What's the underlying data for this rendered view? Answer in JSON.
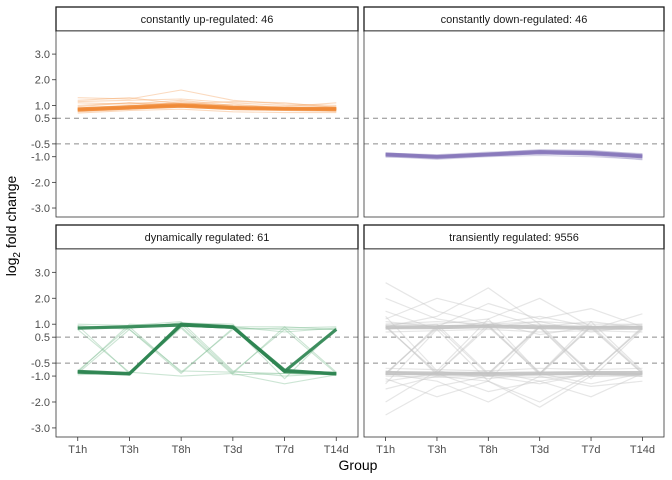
{
  "chart_data": {
    "type": "line",
    "facets": "2x2",
    "xlabel": "Group",
    "ylabel_main": "log",
    "ylabel_sub": "2",
    "ylabel_rest": " fold change",
    "categories": [
      "T1h",
      "T3h",
      "T8h",
      "T3d",
      "T7d",
      "T14d"
    ],
    "y_ticks": [
      {
        "label": "3.0",
        "value": 3.0
      },
      {
        "label": "2.0",
        "value": 2.0
      },
      {
        "label": "1.0",
        "value": 1.0
      },
      {
        "label": "0.5",
        "value": 0.5
      },
      {
        "label": "-0.5",
        "value": -0.5
      },
      {
        "label": "-1.0",
        "value": -1.0
      },
      {
        "label": "-2.0",
        "value": -2.0
      },
      {
        "label": "-3.0",
        "value": -3.0
      }
    ],
    "ylim": [
      -3.35,
      3.9
    ],
    "reference_lines": [
      0.5,
      -0.5
    ],
    "panels": [
      {
        "title": "constantly up-regulated: 46",
        "color": "#f4a360",
        "main_color": "#f08a36",
        "series": [
          {
            "values": [
              0.85,
              0.93,
              1.02,
              0.92,
              0.87,
              0.87
            ]
          },
          {
            "values": [
              0.82,
              0.88,
              0.95,
              0.88,
              0.84,
              0.83
            ]
          },
          {
            "values": [
              0.9,
              1.0,
              1.1,
              0.98,
              0.92,
              0.9
            ]
          },
          {
            "values": [
              1.15,
              1.2,
              1.25,
              1.1,
              1.0,
              0.95
            ]
          },
          {
            "values": [
              0.7,
              0.8,
              0.85,
              0.75,
              0.72,
              0.72
            ]
          },
          {
            "values": [
              1.3,
              1.25,
              1.6,
              1.2,
              1.05,
              1.0
            ]
          },
          {
            "values": [
              0.95,
              1.1,
              1.05,
              0.9,
              0.85,
              0.85
            ]
          },
          {
            "values": [
              1.0,
              1.1,
              0.95,
              1.05,
              0.9,
              0.9
            ]
          },
          {
            "values": [
              0.75,
              0.85,
              1.0,
              0.85,
              0.8,
              0.76
            ]
          },
          {
            "values": [
              1.1,
              1.05,
              1.2,
              1.0,
              0.95,
              1.1
            ]
          },
          {
            "values": [
              0.78,
              0.9,
              1.15,
              0.95,
              0.88,
              0.78
            ]
          },
          {
            "values": [
              1.2,
              1.3,
              1.05,
              1.15,
              1.1,
              0.92
            ]
          }
        ],
        "main_series": [
          {
            "values": [
              0.82,
              0.9,
              0.97,
              0.88,
              0.85,
              0.84
            ]
          },
          {
            "values": [
              0.86,
              0.94,
              1.02,
              0.92,
              0.88,
              0.88
            ]
          }
        ]
      },
      {
        "title": "constantly down-regulated: 46",
        "color": "#a198c8",
        "main_color": "#8879bb",
        "series": [
          {
            "values": [
              -0.92,
              -1.0,
              -0.9,
              -0.82,
              -0.85,
              -0.98
            ]
          },
          {
            "values": [
              -0.95,
              -1.05,
              -0.95,
              -0.86,
              -0.9,
              -1.02
            ]
          },
          {
            "values": [
              -0.9,
              -0.98,
              -0.88,
              -0.8,
              -0.83,
              -0.95
            ]
          },
          {
            "values": [
              -0.85,
              -0.95,
              -0.85,
              -0.72,
              -0.75,
              -0.9
            ]
          },
          {
            "values": [
              -1.0,
              -1.1,
              -1.0,
              -0.95,
              -1.0,
              -1.1
            ]
          },
          {
            "values": [
              -0.88,
              -1.02,
              -0.9,
              -0.78,
              -0.88,
              -1.05
            ]
          },
          {
            "values": [
              -0.94,
              -0.96,
              -0.86,
              -0.84,
              -0.8,
              -0.92
            ]
          },
          {
            "values": [
              -0.98,
              -1.08,
              -0.96,
              -0.9,
              -0.92,
              -1.08
            ]
          },
          {
            "values": [
              -0.86,
              -0.92,
              -0.82,
              -0.75,
              -0.78,
              -0.88
            ]
          },
          {
            "values": [
              -1.02,
              -1.0,
              -0.92,
              -0.88,
              -0.95,
              -1.12
            ]
          }
        ],
        "main_series": [
          {
            "values": [
              -0.9,
              -0.99,
              -0.9,
              -0.8,
              -0.84,
              -0.97
            ]
          },
          {
            "values": [
              -0.93,
              -1.02,
              -0.93,
              -0.84,
              -0.88,
              -1.0
            ]
          }
        ]
      },
      {
        "title": "dynamically regulated: 61",
        "color": "#7fbf93",
        "main_color": "#2f8552",
        "series": [
          {
            "values": [
              0.85,
              0.95,
              1.0,
              0.9,
              0.7,
              0.85
            ]
          },
          {
            "values": [
              0.9,
              0.85,
              1.05,
              0.85,
              -0.85,
              -0.9
            ]
          },
          {
            "values": [
              -0.85,
              -0.9,
              0.95,
              0.9,
              0.9,
              0.8
            ]
          },
          {
            "values": [
              -0.8,
              0.9,
              1.0,
              -0.85,
              -0.9,
              -0.95
            ]
          },
          {
            "values": [
              0.95,
              -0.9,
              0.9,
              0.95,
              -0.8,
              0.8
            ]
          },
          {
            "values": [
              -0.9,
              0.8,
              -0.9,
              0.85,
              0.8,
              -0.9
            ]
          },
          {
            "values": [
              1.0,
              0.95,
              1.1,
              -0.8,
              -1.0,
              -0.9
            ]
          },
          {
            "values": [
              0.85,
              0.9,
              -0.85,
              0.8,
              0.85,
              0.9
            ]
          },
          {
            "values": [
              -0.95,
              -0.85,
              -1.0,
              -0.9,
              -1.3,
              -0.95
            ]
          },
          {
            "values": [
              0.8,
              -0.85,
              0.95,
              0.9,
              -1.1,
              0.85
            ]
          },
          {
            "values": [
              -0.85,
              1.0,
              0.9,
              -0.9,
              0.9,
              -0.85
            ]
          },
          {
            "values": [
              0.9,
              0.85,
              1.05,
              1.0,
              -0.9,
              -0.95
            ]
          },
          {
            "values": [
              -0.9,
              -0.95,
              1.0,
              0.85,
              -0.85,
              0.85
            ]
          },
          {
            "values": [
              0.95,
              0.8,
              -0.8,
              -0.85,
              0.8,
              0.8
            ]
          },
          {
            "values": [
              -0.8,
              -0.9,
              0.85,
              -0.95,
              -0.9,
              -0.9
            ]
          }
        ],
        "main_series": [
          {
            "values": [
              0.85,
              0.9,
              0.97,
              0.88,
              -0.82,
              -0.9
            ]
          },
          {
            "values": [
              -0.82,
              -0.9,
              0.97,
              0.88,
              -0.78,
              -0.92
            ]
          },
          {
            "values": [
              -0.85,
              -0.92,
              1.0,
              0.9,
              -0.82,
              0.8
            ]
          }
        ]
      },
      {
        "title": "transiently regulated: 9556",
        "color": "#c7c7c7",
        "main_color": "#c2c2c2",
        "series": [
          {
            "values": [
              0.9,
              -0.9,
              1.0,
              0.85,
              -0.9,
              0.85
            ]
          },
          {
            "values": [
              -0.9,
              0.9,
              -0.95,
              0.9,
              0.85,
              -0.9
            ]
          },
          {
            "values": [
              1.0,
              1.0,
              -0.9,
              -0.9,
              0.9,
              0.9
            ]
          },
          {
            "values": [
              -0.95,
              -0.9,
              0.9,
              1.0,
              -0.95,
              -0.9
            ]
          },
          {
            "values": [
              0.85,
              0.9,
              0.95,
              -0.85,
              -0.9,
              0.85
            ]
          },
          {
            "values": [
              -0.9,
              0.85,
              0.9,
              -0.9,
              0.95,
              -0.85
            ]
          },
          {
            "values": [
              0.9,
              -0.85,
              -0.9,
              0.9,
              -0.85,
              -0.9
            ]
          },
          {
            "values": [
              -0.85,
              -0.9,
              -0.9,
              -0.95,
              0.9,
              0.9
            ]
          },
          {
            "values": [
              1.5,
              0.8,
              1.1,
              0.6,
              0.9,
              0.8
            ]
          },
          {
            "values": [
              -1.5,
              -1.0,
              -0.8,
              -1.2,
              -0.9,
              -1.0
            ]
          },
          {
            "values": [
              2.0,
              1.2,
              0.9,
              1.1,
              0.7,
              0.95
            ]
          },
          {
            "values": [
              -2.0,
              -0.8,
              -1.1,
              -0.9,
              -1.3,
              -0.9
            ]
          },
          {
            "values": [
              1.2,
              2.0,
              1.5,
              0.9,
              1.1,
              0.85
            ]
          },
          {
            "values": [
              -1.1,
              -1.8,
              -1.2,
              -2.2,
              -1.0,
              -0.95
            ]
          },
          {
            "values": [
              0.9,
              1.3,
              2.4,
              1.0,
              0.8,
              1.4
            ]
          },
          {
            "values": [
              -0.9,
              -1.2,
              -2.0,
              -1.0,
              -1.4,
              -1.2
            ]
          },
          {
            "values": [
              0.8,
              1.0,
              1.2,
              2.0,
              0.9,
              0.9
            ]
          },
          {
            "values": [
              -0.8,
              -1.0,
              -1.2,
              -2.0,
              -0.9,
              -0.9
            ]
          },
          {
            "values": [
              1.1,
              0.9,
              1.8,
              1.2,
              1.6,
              0.9
            ]
          },
          {
            "values": [
              -1.2,
              -0.9,
              -1.6,
              -1.2,
              -1.8,
              -0.9
            ]
          },
          {
            "values": [
              2.6,
              1.5,
              1.0,
              1.3,
              0.9,
              1.0
            ]
          },
          {
            "values": [
              -2.5,
              -1.4,
              -1.0,
              -1.3,
              -0.9,
              -1.0
            ]
          },
          {
            "values": [
              0.95,
              -0.95,
              -0.9,
              0.95,
              0.9,
              -0.9
            ]
          },
          {
            "values": [
              -0.95,
              0.95,
              0.95,
              -0.95,
              -0.9,
              0.9
            ]
          },
          {
            "values": [
              1.0,
              1.1,
              1.0,
              1.1,
              1.0,
              1.0
            ]
          },
          {
            "values": [
              -1.0,
              -1.05,
              -1.0,
              -1.05,
              -1.0,
              -1.0
            ]
          },
          {
            "values": [
              0.7,
              0.75,
              0.8,
              0.7,
              0.75,
              0.7
            ]
          },
          {
            "values": [
              -0.7,
              -0.75,
              -0.8,
              -0.7,
              -0.75,
              -0.7
            ]
          },
          {
            "values": [
              1.3,
              -0.8,
              1.2,
              -0.9,
              1.1,
              -0.8
            ]
          },
          {
            "values": [
              -1.3,
              0.8,
              -1.2,
              0.9,
              -1.1,
              0.8
            ]
          }
        ],
        "main_series": [
          {
            "values": [
              0.88,
              0.88,
              0.92,
              0.88,
              0.86,
              0.86
            ]
          },
          {
            "values": [
              -0.88,
              -0.9,
              -0.92,
              -0.9,
              -0.88,
              -0.88
            ]
          }
        ]
      }
    ]
  }
}
